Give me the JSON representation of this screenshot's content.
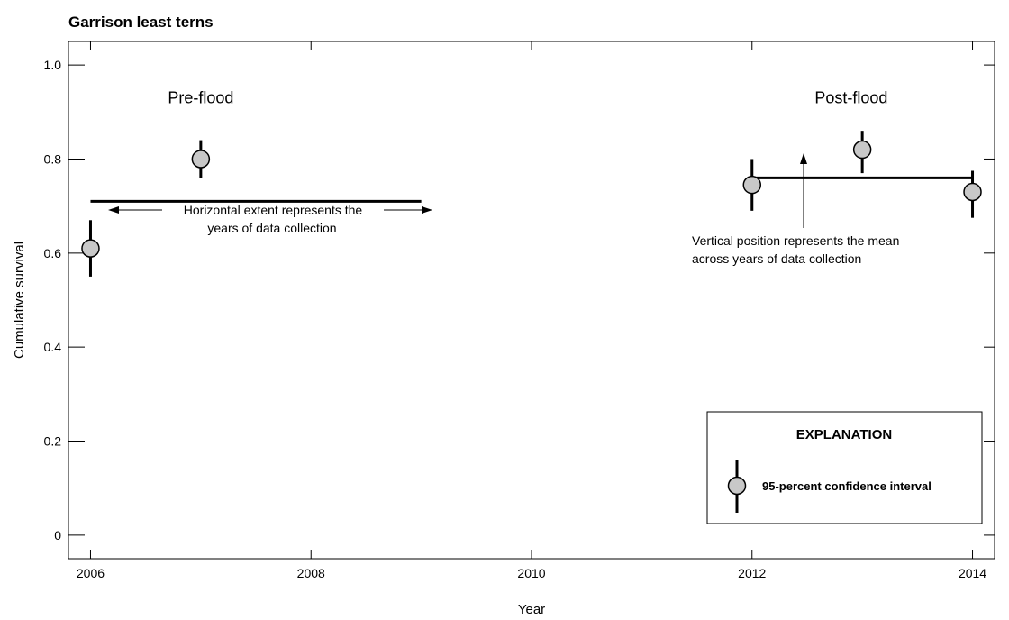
{
  "chart_data": {
    "type": "scatter",
    "title": "Garrison least terns",
    "xlabel": "Year",
    "ylabel": "Cumulative survival",
    "xlim": [
      2005.8,
      2014.2
    ],
    "ylim": [
      -0.05,
      1.05
    ],
    "x_ticks": [
      2006,
      2008,
      2010,
      2012,
      2014
    ],
    "y_ticks": [
      0,
      0.2,
      0.4,
      0.6,
      0.8,
      1.0
    ],
    "y_tick_labels": [
      "0",
      "0.2",
      "0.4",
      "0.6",
      "0.8",
      "1.0"
    ],
    "x_tick_labels": [
      "2006",
      "2008",
      "2010",
      "2012",
      "2014"
    ],
    "grid": false,
    "points": [
      {
        "x": 2006,
        "y": 0.61,
        "lower": 0.55,
        "upper": 0.67
      },
      {
        "x": 2007,
        "y": 0.8,
        "lower": 0.76,
        "upper": 0.84
      },
      {
        "x": 2012,
        "y": 0.745,
        "lower": 0.69,
        "upper": 0.8
      },
      {
        "x": 2013,
        "y": 0.82,
        "lower": 0.77,
        "upper": 0.86
      },
      {
        "x": 2014,
        "y": 0.73,
        "lower": 0.675,
        "upper": 0.775
      }
    ],
    "mean_lines": [
      {
        "x_start": 2006,
        "x_end": 2009,
        "y": 0.71
      },
      {
        "x_start": 2012,
        "x_end": 2014,
        "y": 0.76
      }
    ],
    "period_labels": [
      {
        "text": "Pre-flood",
        "x": 2007,
        "y": 0.93
      },
      {
        "text": "Post-flood",
        "x": 2012.9,
        "y": 0.93
      }
    ],
    "annotations": {
      "horizontal": {
        "line1": "Horizontal extent represents the",
        "line2": "years of data collection"
      },
      "vertical": {
        "line1": "Vertical position represents the mean",
        "line2": "across years of data collection"
      }
    },
    "legend": {
      "title": "EXPLANATION",
      "label": "95-percent confidence interval",
      "position": "bottom-right"
    },
    "colors": {
      "marker_fill": "#c8c8c8",
      "stroke": "#000000"
    }
  }
}
